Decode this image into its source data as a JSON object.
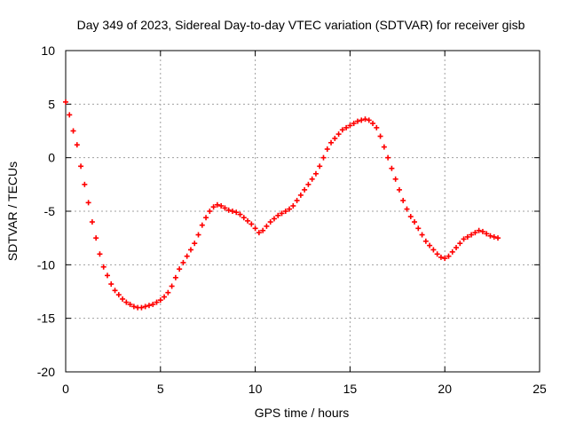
{
  "chart_data": {
    "type": "scatter",
    "title": "Day 349 of 2023, Sidereal Day-to-day VTEC variation (SDTVAR) for receiver gisb",
    "xlabel": "GPS time / hours",
    "ylabel": "SDTVAR / TECUs",
    "xlim": [
      0,
      25
    ],
    "ylim": [
      -20,
      10
    ],
    "xticks": [
      0,
      5,
      10,
      15,
      20,
      25
    ],
    "yticks": [
      -20,
      -15,
      -10,
      -5,
      0,
      5,
      10
    ],
    "xtick_labels": [
      "0",
      "5",
      "10",
      "15",
      "20",
      "25"
    ],
    "ytick_labels": [
      "-20",
      "-15",
      "-10",
      "-5",
      "0",
      "5",
      "10"
    ],
    "grid": true,
    "marker": "+",
    "series": [
      {
        "name": "SDTVAR",
        "color": "#ff0000",
        "x": [
          0.0,
          0.2,
          0.4,
          0.6,
          0.8,
          1.0,
          1.2,
          1.4,
          1.6,
          1.8,
          2.0,
          2.2,
          2.4,
          2.6,
          2.8,
          3.0,
          3.2,
          3.4,
          3.6,
          3.8,
          4.0,
          4.2,
          4.4,
          4.6,
          4.8,
          5.0,
          5.2,
          5.4,
          5.6,
          5.8,
          6.0,
          6.2,
          6.4,
          6.6,
          6.8,
          7.0,
          7.2,
          7.4,
          7.6,
          7.8,
          8.0,
          8.2,
          8.4,
          8.6,
          8.8,
          9.0,
          9.2,
          9.4,
          9.6,
          9.8,
          10.0,
          10.2,
          10.4,
          10.6,
          10.8,
          11.0,
          11.2,
          11.4,
          11.6,
          11.8,
          12.0,
          12.2,
          12.4,
          12.6,
          12.8,
          13.0,
          13.2,
          13.4,
          13.6,
          13.8,
          14.0,
          14.2,
          14.4,
          14.6,
          14.8,
          15.0,
          15.2,
          15.4,
          15.6,
          15.8,
          16.0,
          16.2,
          16.4,
          16.6,
          16.8,
          17.0,
          17.2,
          17.4,
          17.6,
          17.8,
          18.0,
          18.2,
          18.4,
          18.6,
          18.8,
          19.0,
          19.2,
          19.4,
          19.6,
          19.8,
          20.0,
          20.2,
          20.4,
          20.6,
          20.8,
          21.0,
          21.2,
          21.4,
          21.6,
          21.8,
          22.0,
          22.2,
          22.4,
          22.6,
          22.8
        ],
        "y": [
          5.2,
          4.0,
          2.5,
          1.2,
          -0.8,
          -2.5,
          -4.2,
          -6.0,
          -7.5,
          -9.0,
          -10.2,
          -11.0,
          -11.8,
          -12.4,
          -12.8,
          -13.2,
          -13.5,
          -13.7,
          -13.9,
          -14.0,
          -14.0,
          -13.9,
          -13.8,
          -13.7,
          -13.5,
          -13.3,
          -13.0,
          -12.6,
          -12.0,
          -11.2,
          -10.4,
          -9.8,
          -9.2,
          -8.6,
          -8.0,
          -7.2,
          -6.3,
          -5.6,
          -5.0,
          -4.6,
          -4.4,
          -4.5,
          -4.7,
          -4.9,
          -5.0,
          -5.1,
          -5.3,
          -5.6,
          -5.9,
          -6.2,
          -6.6,
          -7.0,
          -6.8,
          -6.4,
          -6.0,
          -5.7,
          -5.4,
          -5.2,
          -5.0,
          -4.8,
          -4.5,
          -4.0,
          -3.5,
          -3.0,
          -2.5,
          -2.0,
          -1.5,
          -0.8,
          0.0,
          0.8,
          1.4,
          1.8,
          2.2,
          2.6,
          2.8,
          3.0,
          3.2,
          3.4,
          3.5,
          3.6,
          3.5,
          3.2,
          2.8,
          2.0,
          1.0,
          0.0,
          -1.0,
          -2.0,
          -3.0,
          -4.0,
          -4.8,
          -5.5,
          -6.0,
          -6.6,
          -7.2,
          -7.8,
          -8.2,
          -8.6,
          -9.0,
          -9.3,
          -9.4,
          -9.2,
          -8.8,
          -8.4,
          -8.0,
          -7.6,
          -7.4,
          -7.2,
          -7.0,
          -6.8,
          -6.9,
          -7.1,
          -7.3,
          -7.4,
          -7.5
        ]
      }
    ]
  }
}
